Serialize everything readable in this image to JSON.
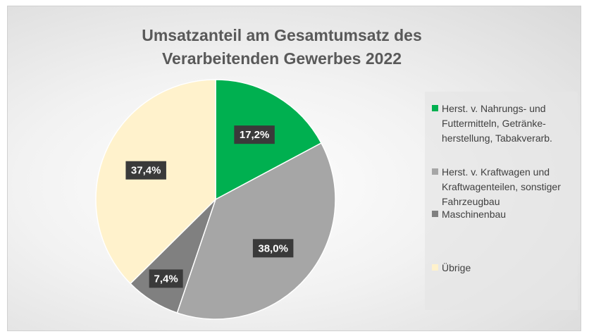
{
  "chart_data": {
    "type": "pie",
    "title": "Umsatzanteil am Gesamtumsatz des Verarbeitenden Gewerbes 2022",
    "categories": [
      "Herst. v. Nahrungs- und Futtermitteln, Getränke-herstellung, Tabakverarb.",
      "Herst. v. Kraftwagen und Kraftwagenteilen, sonstiger Fahrzeugbau",
      "Maschinenbau",
      "Übrige"
    ],
    "values": [
      17.2,
      38.0,
      7.4,
      37.4
    ],
    "value_labels": [
      "17,2%",
      "38,0%",
      "7,4%",
      "37,4%"
    ],
    "colors": [
      "#00b050",
      "#a6a6a6",
      "#808080",
      "#fff2cc"
    ],
    "legend": "right"
  }
}
